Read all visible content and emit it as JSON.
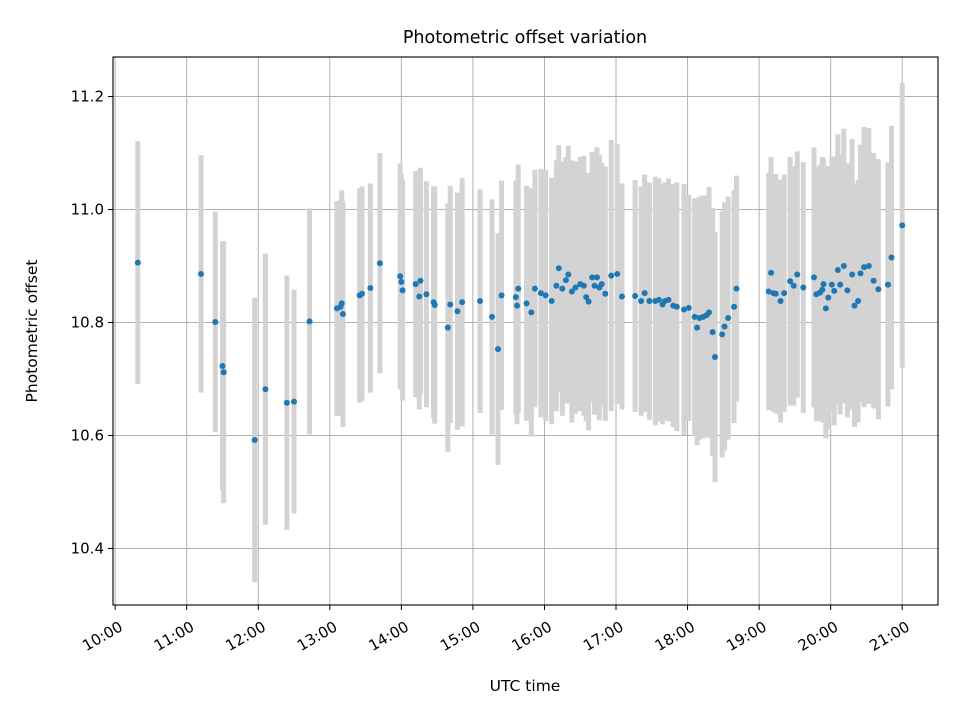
{
  "chart_data": {
    "type": "scatter",
    "title": "Photometric offset variation",
    "xlabel": "UTC time",
    "ylabel": "Photometric offset",
    "x_tick_labels": [
      "10:00",
      "11:00",
      "12:00",
      "13:00",
      "14:00",
      "15:00",
      "16:00",
      "17:00",
      "18:00",
      "19:00",
      "20:00",
      "21:00"
    ],
    "y_tick_labels": [
      "10.4",
      "10.6",
      "10.8",
      "11.0",
      "11.2"
    ],
    "y_ticks": [
      10.4,
      10.6,
      10.8,
      11.0,
      11.2
    ],
    "xlim_hours": [
      9.97,
      21.5
    ],
    "ylim": [
      10.3,
      11.27
    ],
    "grid": true,
    "colors": {
      "points": "#1f77b4",
      "errorbars": "#d3d3d3",
      "grid": "#b0b0b0"
    },
    "series": [
      {
        "x_utc": [
          "10:19",
          "11:12",
          "11:24",
          "11:30",
          "11:31",
          "11:57",
          "12:06",
          "12:24",
          "12:30",
          "12:43",
          "13:06",
          "13:09",
          "13:10",
          "13:11",
          "13:25",
          "13:27",
          "13:34",
          "13:42",
          "13:59",
          "14:00",
          "14:01",
          "14:12",
          "14:15",
          "14:16",
          "14:21",
          "14:27",
          "14:28",
          "14:39",
          "14:41",
          "14:47",
          "14:51",
          "15:06",
          "15:16",
          "15:21",
          "15:24",
          "15:36",
          "15:37",
          "15:38",
          "15:45",
          "15:49",
          "15:52",
          "15:57",
          "16:01",
          "16:06",
          "16:10",
          "16:12",
          "16:15",
          "16:18",
          "16:20",
          "16:23",
          "16:26",
          "16:30",
          "16:33",
          "16:35",
          "16:37",
          "16:40",
          "16:42",
          "16:44",
          "16:46",
          "16:48",
          "16:51",
          "16:56",
          "17:01",
          "17:05",
          "17:16",
          "17:21",
          "17:24",
          "17:28",
          "17:33",
          "17:36",
          "17:39",
          "17:41",
          "17:44",
          "17:48",
          "17:51",
          "17:57",
          "18:01",
          "18:06",
          "18:08",
          "18:10",
          "18:13",
          "18:16",
          "18:18",
          "18:21",
          "18:23",
          "18:29",
          "18:31",
          "18:34",
          "18:39",
          "18:41",
          "19:08",
          "19:10",
          "19:12",
          "19:14",
          "19:18",
          "19:21",
          "19:26",
          "19:29",
          "19:32",
          "19:37",
          "19:46",
          "19:48",
          "19:51",
          "19:53",
          "19:54",
          "19:56",
          "19:58",
          "20:01",
          "20:03",
          "20:06",
          "20:08",
          "20:11",
          "20:14",
          "20:18",
          "20:20",
          "20:23",
          "20:25",
          "20:28",
          "20:32",
          "20:36",
          "20:40",
          "20:48",
          "20:51",
          "21:00"
        ],
        "y": [
          10.906,
          10.886,
          10.801,
          10.723,
          10.712,
          10.592,
          10.682,
          10.658,
          10.66,
          10.802,
          10.825,
          10.828,
          10.834,
          10.815,
          10.848,
          10.851,
          10.861,
          10.905,
          10.882,
          10.872,
          10.857,
          10.868,
          10.846,
          10.874,
          10.85,
          10.836,
          10.831,
          10.791,
          10.832,
          10.82,
          10.836,
          10.838,
          10.81,
          10.753,
          10.848,
          10.845,
          10.83,
          10.86,
          10.834,
          10.818,
          10.86,
          10.852,
          10.848,
          10.838,
          10.865,
          10.896,
          10.86,
          10.875,
          10.885,
          10.855,
          10.862,
          10.868,
          10.865,
          10.845,
          10.837,
          10.88,
          10.865,
          10.88,
          10.862,
          10.868,
          10.851,
          10.883,
          10.886,
          10.846,
          10.847,
          10.838,
          10.852,
          10.838,
          10.838,
          10.84,
          10.832,
          10.838,
          10.84,
          10.83,
          10.828,
          10.823,
          10.826,
          10.81,
          10.791,
          10.808,
          10.81,
          10.813,
          10.818,
          10.783,
          10.739,
          10.779,
          10.793,
          10.808,
          10.828,
          10.86,
          10.855,
          10.888,
          10.852,
          10.851,
          10.838,
          10.852,
          10.873,
          10.865,
          10.885,
          10.862,
          10.88,
          10.85,
          10.853,
          10.858,
          10.868,
          10.825,
          10.844,
          10.867,
          10.856,
          10.893,
          10.867,
          10.9,
          10.857,
          10.885,
          10.83,
          10.838,
          10.887,
          10.898,
          10.9,
          10.874,
          10.859,
          10.867,
          10.915,
          10.972
        ],
        "err": [
          0.215,
          0.21,
          0.195,
          0.22,
          0.232,
          0.252,
          0.24,
          0.225,
          0.198,
          0.2,
          0.19,
          0.19,
          0.2,
          0.2,
          0.19,
          0.19,
          0.185,
          0.195,
          0.2,
          0.19,
          0.195,
          0.2,
          0.2,
          0.2,
          0.2,
          0.205,
          0.21,
          0.22,
          0.21,
          0.21,
          0.22,
          0.198,
          0.208,
          0.205,
          0.203,
          0.206,
          0.21,
          0.22,
          0.208,
          0.22,
          0.21,
          0.22,
          0.222,
          0.218,
          0.222,
          0.218,
          0.225,
          0.218,
          0.228,
          0.232,
          0.223,
          0.225,
          0.23,
          0.22,
          0.228,
          0.222,
          0.228,
          0.23,
          0.235,
          0.215,
          0.225,
          0.24,
          0.23,
          0.2,
          0.205,
          0.203,
          0.21,
          0.21,
          0.22,
          0.215,
          0.212,
          0.21,
          0.215,
          0.215,
          0.22,
          0.222,
          0.2,
          0.21,
          0.208,
          0.215,
          0.215,
          0.212,
          0.222,
          0.22,
          0.222,
          0.218,
          0.22,
          0.215,
          0.206,
          0.2,
          0.21,
          0.205,
          0.21,
          0.212,
          0.215,
          0.21,
          0.22,
          0.212,
          0.218,
          0.222,
          0.23,
          0.225,
          0.226,
          0.235,
          0.222,
          0.23,
          0.233,
          0.225,
          0.238,
          0.24,
          0.23,
          0.243,
          0.225,
          0.24,
          0.215,
          0.215,
          0.228,
          0.248,
          0.244,
          0.226,
          0.23,
          0.216,
          0.233,
          0.252
        ]
      }
    ]
  }
}
